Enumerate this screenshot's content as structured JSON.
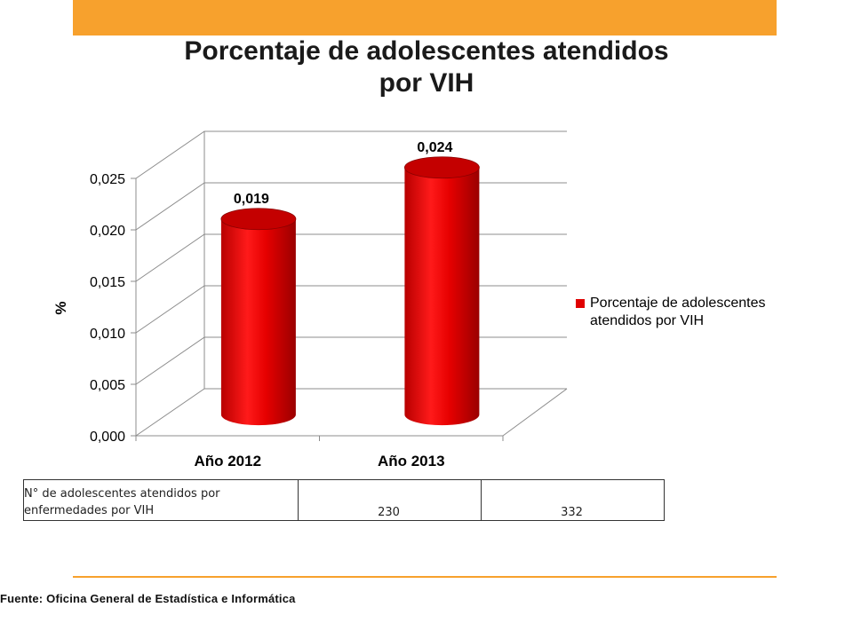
{
  "title_lines": [
    "Porcentaje de adolescentes atendidos",
    "por VIH"
  ],
  "chart_data": {
    "type": "bar",
    "style": "3d-cylinder",
    "categories": [
      "Año 2012",
      "Año 2013"
    ],
    "series": [
      {
        "name": "Porcentaje de adolescentes atendidos por VIH",
        "values": [
          0.019,
          0.024
        ],
        "color": "#e00000"
      }
    ],
    "data_labels": [
      "0,019",
      "0,024"
    ],
    "ylabel": "%",
    "ylim": [
      0,
      0.025
    ],
    "y_ticks": [
      0,
      0.005,
      0.01,
      0.015,
      0.02,
      0.025
    ],
    "y_tick_labels": [
      "0,000",
      "0,005",
      "0,010",
      "0,015",
      "0,020",
      "0,025"
    ],
    "grid": true,
    "legend_position": "right"
  },
  "legend": {
    "lines": [
      "Porcentaje de adolescentes",
      "atendidos por VIH"
    ]
  },
  "table": {
    "row_label_lines": [
      "N° de adolescentes atendidos por",
      "enfermedades por VIH"
    ],
    "values": [
      "230",
      "332"
    ]
  },
  "source": "Fuente:  Oficina  General  de  Estadística  e  Informática",
  "colors": {
    "accent_orange": "#f7a12d",
    "bar_red": "#e00000"
  }
}
